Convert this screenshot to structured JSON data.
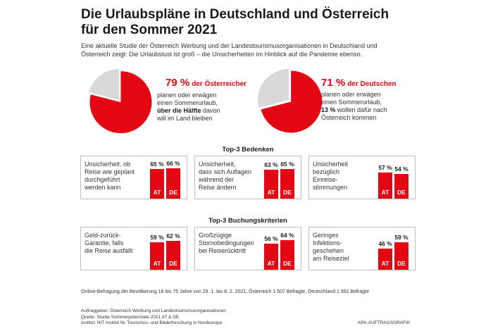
{
  "header": {
    "title_line1": "Die Urlaubspläne in Deutschland und Österreich",
    "title_line2": "für den Sommer 2021",
    "intro_line1": "Eine aktuelle Studie der Österreich Werbung und der Landestourismusorganisationen in Deutschland und",
    "intro_line2": "Österreich zeigt: Die Urlaubslust ist groß – die Unsicherheiten im Hinblick auf die Pandemie ebenso."
  },
  "colors": {
    "accent": "#e30613",
    "pie_rest": "#d9d9d9",
    "card_border": "#bdbdbd"
  },
  "pies": [
    {
      "value_text": "79 %",
      "label": "der Österreicher",
      "line1": "planen oder erwägen",
      "line2": "einen Sommerurlaub,",
      "line3_bold": "über die Hälfte",
      "line3_rest": " davon",
      "line4": "will im Land bleiben"
    },
    {
      "value_text": "71 %",
      "label": "der Deutschen",
      "line1": "planen oder erwägen",
      "line2": "einen Sommerurlaub,",
      "line3_bold": "13 %",
      "line3_rest": " wollen dafür nach",
      "line4": "Österreich kommen"
    }
  ],
  "sections": {
    "bedenken": "Top-3 Bedenken",
    "kriterien": "Top-3 Buchungskriterien"
  },
  "footer": {
    "survey": "Online-Befragung der Bevölkerung 18 bis 75 Jahre von 29. 1. bis 8. 2. 2021, Österreich 1.507 Befragte, Deutschland 1.992 Befragte",
    "credit1": "Auftraggeber: Österreich Werbung und Landestourismusorganisationen",
    "credit2": "Quelle: Studie Sommerpotenziale 2021 AT & DE",
    "credit3": "Institut: NIT Institut für Tourismus- und Bäderforschung in Nordeuropa",
    "agency": "APA-AUFTRAGSGRAFIK"
  },
  "chart_data": [
    {
      "type": "pie",
      "categories": [
        "Österreicher planen/erwägen Sommerurlaub",
        "Rest"
      ],
      "values": [
        79,
        21
      ]
    },
    {
      "type": "pie",
      "categories": [
        "Deutsche planen/erwägen Sommerurlaub",
        "Rest"
      ],
      "values": [
        71,
        29
      ]
    },
    {
      "type": "bar",
      "title": "Top-3 Bedenken",
      "groups": [
        {
          "label": [
            "Unsicherheit, ob",
            "Reise wie geplant",
            "durchgeführt",
            "werden kann"
          ],
          "AT": 65,
          "DE": 66
        },
        {
          "label": [
            "Unsicherheit,",
            "dass sich Auflagen",
            "während der",
            "Reise ändern"
          ],
          "AT": 63,
          "DE": 65
        },
        {
          "label": [
            "Unsicherheit",
            "bezüglich",
            "Einreise-",
            "stimmungen"
          ],
          "AT": 57,
          "DE": 54
        }
      ],
      "series_codes": [
        "AT",
        "DE"
      ],
      "unit": "%"
    },
    {
      "type": "bar",
      "title": "Top-3 Buchungskriterien",
      "groups": [
        {
          "label": [
            "Geld-zurück-",
            "Garantie, falls",
            "die Reise ausfällt"
          ],
          "AT": 59,
          "DE": 62
        },
        {
          "label": [
            "Großzügige",
            "Stornobedingungen",
            "bei Reiserücktritt"
          ],
          "AT": 56,
          "DE": 64
        },
        {
          "label": [
            "Geringes",
            "Infektions-",
            "geschehen",
            "am Reiseziel"
          ],
          "AT": 46,
          "DE": 59
        }
      ],
      "series_codes": [
        "AT",
        "DE"
      ],
      "unit": "%"
    }
  ]
}
